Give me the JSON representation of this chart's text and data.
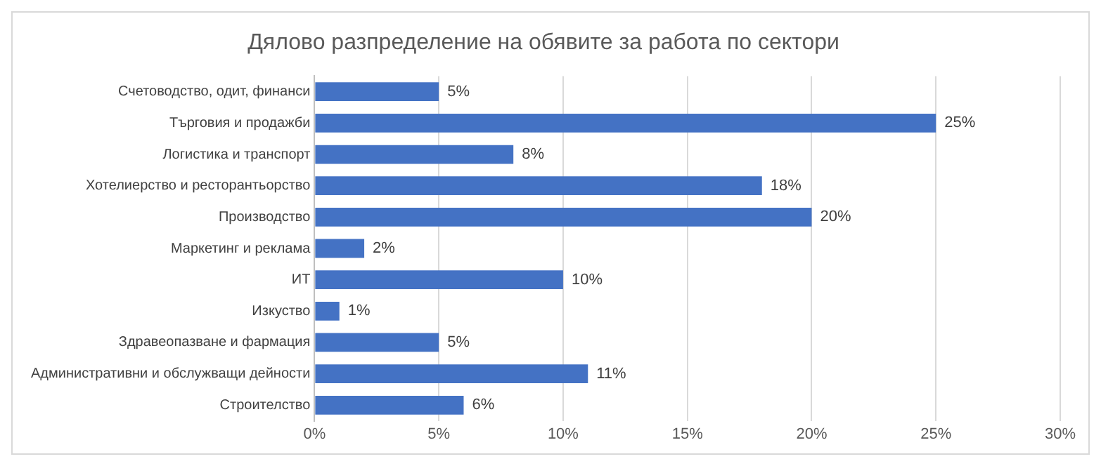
{
  "chart_data": {
    "type": "bar",
    "orientation": "horizontal",
    "title": "Дялово разпределение на обявите за работа по сектори",
    "categories": [
      "Счетоводство, одит, финанси",
      "Търговия и продажби",
      "Логистика и транспорт",
      "Хотелиерство и ресторантьорство",
      "Производство",
      "Маркетинг и реклама",
      "ИТ",
      "Изкуство",
      "Здравеопазване и фармация",
      "Административни и обслужващи дейности",
      "Строителство"
    ],
    "values": [
      5,
      25,
      8,
      18,
      20,
      2,
      10,
      1,
      5,
      11,
      6
    ],
    "value_labels": [
      "5%",
      "25%",
      "8%",
      "18%",
      "20%",
      "2%",
      "10%",
      "1%",
      "5%",
      "11%",
      "6%"
    ],
    "color": "#4472c4",
    "xlim": [
      0,
      30
    ],
    "xticks": [
      {
        "value": 0,
        "label": "0%"
      },
      {
        "value": 5,
        "label": "5%"
      },
      {
        "value": 10,
        "label": "10%"
      },
      {
        "value": 15,
        "label": "15%"
      },
      {
        "value": 20,
        "label": "20%"
      },
      {
        "value": 25,
        "label": "25%"
      },
      {
        "value": 30,
        "label": "30%"
      }
    ],
    "grid": "x",
    "legend": false
  }
}
